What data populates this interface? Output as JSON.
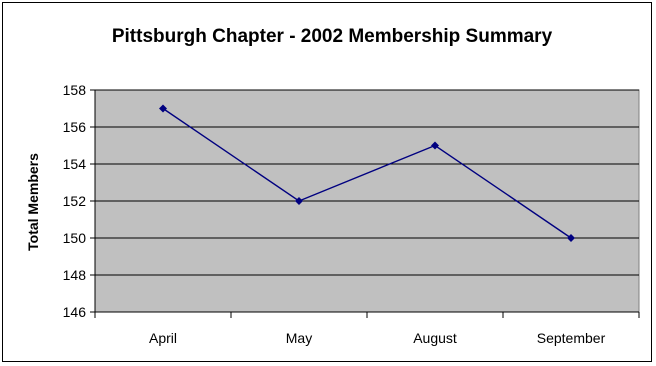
{
  "chart_data": {
    "type": "line",
    "title": "Pittsburgh Chapter - 2002 Membership Summary",
    "xlabel": "",
    "ylabel": "Total Members",
    "categories": [
      "April",
      "May",
      "August",
      "September"
    ],
    "values": [
      157,
      152,
      155,
      150
    ],
    "ylim": [
      146,
      158
    ],
    "ytick_step": 2,
    "grid": true,
    "legend": "none",
    "colors": {
      "plot_background": "#c0c0c0",
      "line": "#000080",
      "gridline": "#000000"
    }
  }
}
